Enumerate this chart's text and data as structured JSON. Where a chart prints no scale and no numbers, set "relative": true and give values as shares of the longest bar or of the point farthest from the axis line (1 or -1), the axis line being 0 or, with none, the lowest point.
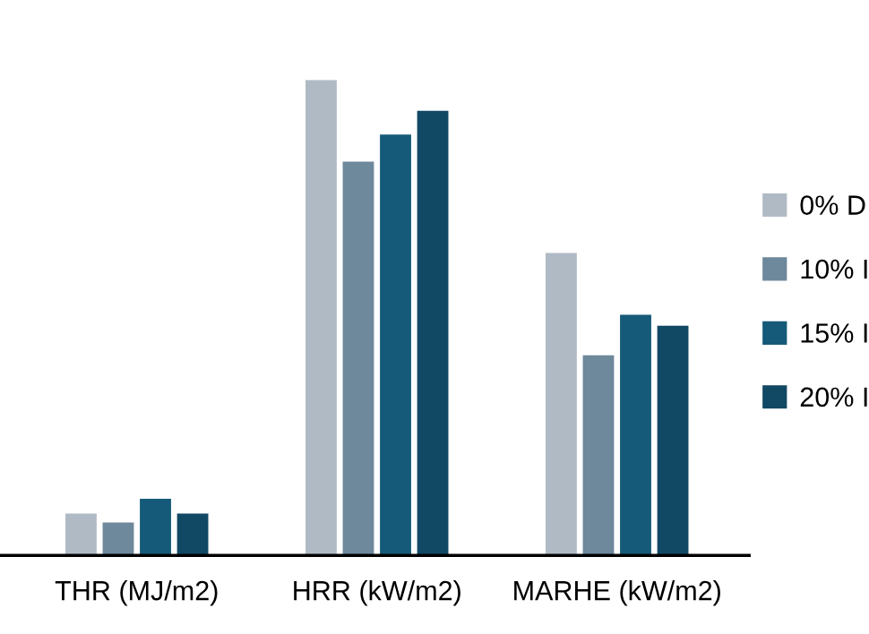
{
  "chart_data": {
    "type": "bar",
    "relative": true,
    "categories": [
      "THR (MJ/m2)",
      "HRR (kW/m2)",
      "MARHE (kW/m2)"
    ],
    "series": [
      {
        "name": "0% D",
        "color": "#b0bac4",
        "values": [
          0.088,
          1,
          0.636
        ]
      },
      {
        "name": "10% I",
        "color": "#6e889c",
        "values": [
          0.069,
          0.828,
          0.421
        ]
      },
      {
        "name": "15% I",
        "color": "#155a78",
        "values": [
          0.119,
          0.885,
          0.506
        ]
      },
      {
        "name": "20% I",
        "color": "#114864",
        "values": [
          0.088,
          0.935,
          0.483
        ]
      }
    ],
    "grid": false,
    "legend": "right"
  }
}
